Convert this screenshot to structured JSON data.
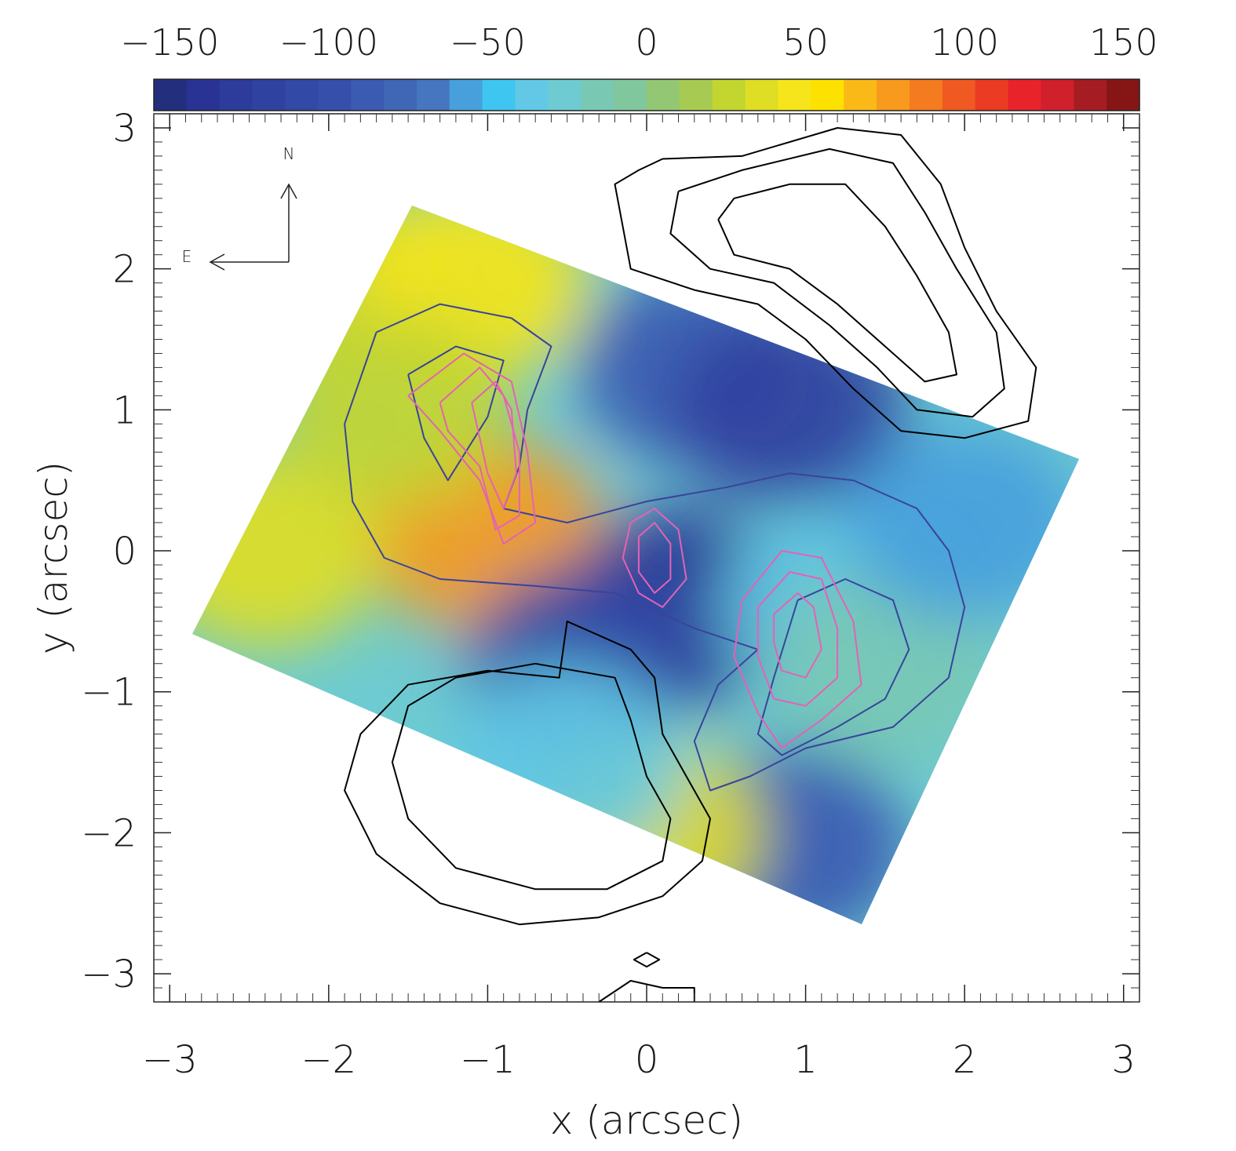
{
  "chart_data": {
    "type": "heatmap",
    "title": "",
    "xlabel": "x (arcsec)",
    "ylabel": "y (arcsec)",
    "xlim": [
      -3.1,
      3.1
    ],
    "ylim": [
      -3.2,
      3.1
    ],
    "xticks": [
      -3,
      -2,
      -1,
      0,
      1,
      2,
      3
    ],
    "yticks": [
      -3,
      -2,
      -1,
      0,
      1,
      2,
      3
    ],
    "xtick_labels": [
      "−3",
      "−2",
      "−1",
      "0",
      "1",
      "2",
      "3"
    ],
    "ytick_labels": [
      "−3",
      "−2",
      "−1",
      "0",
      "1",
      "2",
      "3"
    ],
    "grid": false,
    "colorbar": {
      "orientation": "horizontal",
      "position": "top",
      "range": [
        -155,
        155
      ],
      "ticks": [
        -150,
        -100,
        -50,
        0,
        50,
        100,
        150
      ],
      "tick_labels": [
        "−150",
        "−100",
        "−50",
        "0",
        "50",
        "100",
        "150"
      ],
      "colors": [
        "#232f7c",
        "#293393",
        "#2d3b9a",
        "#3042a0",
        "#3249a5",
        "#354fab",
        "#3b5ab1",
        "#4066b6",
        "#4576bf",
        "#47a0dc",
        "#3ec6f0",
        "#62c8e5",
        "#6ecbd1",
        "#79c8b4",
        "#80c79d",
        "#93c773",
        "#a7cb52",
        "#c3d52f",
        "#dfdd24",
        "#f6e51a",
        "#fde100",
        "#fbb917",
        "#f79a1d",
        "#f47b20",
        "#f05a22",
        "#ec3b23",
        "#e8232a",
        "#d0202c",
        "#a51d22",
        "#861616"
      ]
    },
    "compass": {
      "north": "N",
      "east": "E"
    },
    "velocity_field": [
      {
        "x": -2.1,
        "y": 2.0,
        "v": 25
      },
      {
        "x": -1.1,
        "y": 1.9,
        "v": 45
      },
      {
        "x": -1.0,
        "y": 0.1,
        "v": 75
      },
      {
        "x": -2.4,
        "y": 0.0,
        "v": 40
      },
      {
        "x": -1.6,
        "y": 1.0,
        "v": 22
      },
      {
        "x": 0.3,
        "y": 1.3,
        "v": -90
      },
      {
        "x": 0.9,
        "y": 1.0,
        "v": -115
      },
      {
        "x": 0.2,
        "y": -0.4,
        "v": -135
      },
      {
        "x": -0.4,
        "y": -0.8,
        "v": -105
      },
      {
        "x": 1.2,
        "y": -0.4,
        "v": -35
      },
      {
        "x": 1.5,
        "y": -0.8,
        "v": -18
      },
      {
        "x": 2.0,
        "y": 0.2,
        "v": -60
      },
      {
        "x": 0.9,
        "y": -2.1,
        "v": -90
      },
      {
        "x": 0.0,
        "y": -2.0,
        "v": 40
      },
      {
        "x": -0.5,
        "y": -1.5,
        "v": -40
      }
    ],
    "series": [
      {
        "name": "",
        "color": "#000000",
        "contours": [
          [
            [
              -0.05,
              2.7
            ],
            [
              -0.2,
              2.6
            ],
            [
              -0.15,
              2.3
            ],
            [
              -0.1,
              2.0
            ],
            [
              0.3,
              1.85
            ],
            [
              0.7,
              1.75
            ],
            [
              1.0,
              1.5
            ],
            [
              1.3,
              1.15
            ],
            [
              1.6,
              0.85
            ],
            [
              2.0,
              0.8
            ],
            [
              2.4,
              0.92
            ],
            [
              2.45,
              1.3
            ],
            [
              2.2,
              1.7
            ],
            [
              2.0,
              2.15
            ],
            [
              1.85,
              2.6
            ],
            [
              1.6,
              2.95
            ],
            [
              1.2,
              3.0
            ],
            [
              0.6,
              2.8
            ],
            [
              0.1,
              2.78
            ],
            [
              -0.05,
              2.7
            ]
          ],
          [
            [
              0.2,
              2.55
            ],
            [
              0.15,
              2.25
            ],
            [
              0.4,
              2.0
            ],
            [
              0.8,
              1.9
            ],
            [
              1.15,
              1.6
            ],
            [
              1.45,
              1.3
            ],
            [
              1.7,
              1.0
            ],
            [
              2.05,
              0.95
            ],
            [
              2.25,
              1.15
            ],
            [
              2.2,
              1.55
            ],
            [
              1.95,
              2.0
            ],
            [
              1.75,
              2.4
            ],
            [
              1.55,
              2.75
            ],
            [
              1.15,
              2.85
            ],
            [
              0.6,
              2.7
            ],
            [
              0.2,
              2.55
            ]
          ],
          [
            [
              0.45,
              2.35
            ],
            [
              0.55,
              2.1
            ],
            [
              0.9,
              2.0
            ],
            [
              1.2,
              1.75
            ],
            [
              1.5,
              1.45
            ],
            [
              1.75,
              1.2
            ],
            [
              1.95,
              1.25
            ],
            [
              1.9,
              1.55
            ],
            [
              1.7,
              1.95
            ],
            [
              1.5,
              2.3
            ],
            [
              1.25,
              2.6
            ],
            [
              0.9,
              2.6
            ],
            [
              0.55,
              2.5
            ],
            [
              0.45,
              2.35
            ]
          ],
          [
            [
              -0.3,
              -0.6
            ],
            [
              -0.5,
              -0.5
            ],
            [
              -0.55,
              -0.9
            ],
            [
              -1.0,
              -0.85
            ],
            [
              -1.5,
              -0.95
            ],
            [
              -1.8,
              -1.3
            ],
            [
              -1.9,
              -1.7
            ],
            [
              -1.7,
              -2.15
            ],
            [
              -1.3,
              -2.5
            ],
            [
              -0.8,
              -2.65
            ],
            [
              -0.3,
              -2.6
            ],
            [
              0.1,
              -2.45
            ],
            [
              0.35,
              -2.2
            ],
            [
              0.4,
              -1.9
            ],
            [
              0.25,
              -1.6
            ],
            [
              0.1,
              -1.3
            ],
            [
              0.05,
              -0.9
            ],
            [
              -0.1,
              -0.7
            ],
            [
              -0.3,
              -0.6
            ]
          ],
          [
            [
              -0.7,
              -0.8
            ],
            [
              -1.2,
              -0.9
            ],
            [
              -1.5,
              -1.1
            ],
            [
              -1.6,
              -1.5
            ],
            [
              -1.5,
              -1.9
            ],
            [
              -1.2,
              -2.25
            ],
            [
              -0.7,
              -2.4
            ],
            [
              -0.25,
              -2.4
            ],
            [
              0.1,
              -2.2
            ],
            [
              0.15,
              -1.9
            ],
            [
              0.0,
              -1.6
            ],
            [
              -0.1,
              -1.2
            ],
            [
              -0.2,
              -0.9
            ],
            [
              -0.7,
              -0.8
            ]
          ],
          [
            [
              0.0,
              -2.85
            ],
            [
              0.08,
              -2.9
            ],
            [
              0.0,
              -2.95
            ],
            [
              -0.08,
              -2.9
            ],
            [
              0.0,
              -2.85
            ]
          ],
          [
            [
              -0.3,
              -3.2
            ],
            [
              -0.1,
              -3.05
            ],
            [
              0.1,
              -3.1
            ],
            [
              0.3,
              -3.1
            ],
            [
              0.3,
              -3.2
            ]
          ]
        ]
      },
      {
        "name": "",
        "color": "#3a4499",
        "contours": [
          [
            [
              -1.7,
              1.55
            ],
            [
              -1.3,
              1.75
            ],
            [
              -0.85,
              1.65
            ],
            [
              -0.6,
              1.45
            ],
            [
              -0.75,
              1.0
            ],
            [
              -0.8,
              0.6
            ],
            [
              -0.9,
              0.3
            ],
            [
              -0.5,
              0.2
            ],
            [
              0.0,
              0.35
            ],
            [
              0.5,
              0.45
            ],
            [
              0.9,
              0.55
            ],
            [
              1.3,
              0.5
            ],
            [
              1.7,
              0.3
            ],
            [
              1.9,
              0.0
            ],
            [
              2.0,
              -0.4
            ],
            [
              1.9,
              -0.9
            ],
            [
              1.55,
              -1.25
            ],
            [
              1.0,
              -1.4
            ],
            [
              0.65,
              -1.6
            ],
            [
              0.4,
              -1.7
            ],
            [
              0.3,
              -1.35
            ],
            [
              0.45,
              -0.95
            ],
            [
              0.7,
              -0.7
            ],
            [
              0.3,
              -0.55
            ],
            [
              -0.2,
              -0.3
            ],
            [
              -0.7,
              -0.25
            ],
            [
              -1.3,
              -0.2
            ],
            [
              -1.65,
              -0.05
            ],
            [
              -1.85,
              0.35
            ],
            [
              -1.9,
              0.9
            ],
            [
              -1.7,
              1.55
            ]
          ],
          [
            [
              -1.5,
              1.25
            ],
            [
              -1.2,
              1.45
            ],
            [
              -0.9,
              1.35
            ],
            [
              -1.0,
              0.95
            ],
            [
              -1.25,
              0.5
            ],
            [
              -1.4,
              0.8
            ],
            [
              -1.5,
              1.25
            ]
          ],
          [
            [
              0.95,
              -0.35
            ],
            [
              1.25,
              -0.2
            ],
            [
              1.55,
              -0.35
            ],
            [
              1.65,
              -0.7
            ],
            [
              1.5,
              -1.05
            ],
            [
              1.2,
              -1.25
            ],
            [
              0.85,
              -1.45
            ],
            [
              0.7,
              -1.3
            ],
            [
              0.8,
              -0.9
            ],
            [
              0.95,
              -0.35
            ]
          ]
        ]
      },
      {
        "name": "",
        "color": "#e462b5",
        "contours": [
          [
            [
              -1.5,
              1.1
            ],
            [
              -1.15,
              1.4
            ],
            [
              -0.85,
              1.2
            ],
            [
              -0.75,
              0.7
            ],
            [
              -0.7,
              0.2
            ],
            [
              -0.9,
              0.05
            ],
            [
              -1.05,
              0.5
            ],
            [
              -1.3,
              0.85
            ],
            [
              -1.5,
              1.1
            ]
          ],
          [
            [
              -1.3,
              1.05
            ],
            [
              -1.05,
              1.3
            ],
            [
              -0.9,
              1.1
            ],
            [
              -0.8,
              0.7
            ],
            [
              -0.8,
              0.25
            ],
            [
              -0.95,
              0.15
            ],
            [
              -1.05,
              0.6
            ],
            [
              -1.25,
              0.85
            ],
            [
              -1.3,
              1.05
            ]
          ],
          [
            [
              -1.1,
              1.05
            ],
            [
              -0.95,
              1.2
            ],
            [
              -0.85,
              1.0
            ],
            [
              -0.82,
              0.55
            ],
            [
              -0.9,
              0.3
            ],
            [
              -1.0,
              0.55
            ],
            [
              -1.1,
              1.05
            ]
          ],
          [
            [
              -0.1,
              0.2
            ],
            [
              0.05,
              0.3
            ],
            [
              0.2,
              0.15
            ],
            [
              0.25,
              -0.2
            ],
            [
              0.1,
              -0.4
            ],
            [
              -0.05,
              -0.3
            ],
            [
              -0.15,
              -0.05
            ],
            [
              -0.1,
              0.2
            ]
          ],
          [
            [
              -0.05,
              0.1
            ],
            [
              0.05,
              0.2
            ],
            [
              0.15,
              0.05
            ],
            [
              0.15,
              -0.2
            ],
            [
              0.05,
              -0.3
            ],
            [
              -0.05,
              -0.15
            ],
            [
              -0.05,
              0.1
            ]
          ],
          [
            [
              0.6,
              -0.35
            ],
            [
              0.85,
              0.0
            ],
            [
              1.1,
              -0.05
            ],
            [
              1.3,
              -0.5
            ],
            [
              1.35,
              -0.95
            ],
            [
              1.1,
              -1.2
            ],
            [
              0.85,
              -1.4
            ],
            [
              0.7,
              -1.15
            ],
            [
              0.55,
              -0.75
            ],
            [
              0.6,
              -0.35
            ]
          ],
          [
            [
              0.7,
              -0.4
            ],
            [
              0.9,
              -0.15
            ],
            [
              1.1,
              -0.2
            ],
            [
              1.2,
              -0.55
            ],
            [
              1.2,
              -0.9
            ],
            [
              1.0,
              -1.1
            ],
            [
              0.8,
              -1.05
            ],
            [
              0.7,
              -0.75
            ],
            [
              0.7,
              -0.4
            ]
          ],
          [
            [
              0.8,
              -0.45
            ],
            [
              0.95,
              -0.3
            ],
            [
              1.05,
              -0.4
            ],
            [
              1.1,
              -0.7
            ],
            [
              1.0,
              -0.9
            ],
            [
              0.85,
              -0.85
            ],
            [
              0.8,
              -0.65
            ],
            [
              0.8,
              -0.45
            ]
          ]
        ]
      }
    ]
  }
}
